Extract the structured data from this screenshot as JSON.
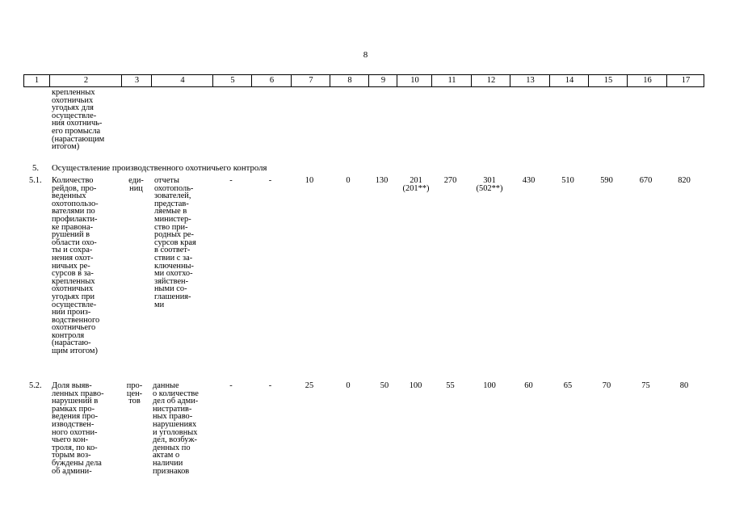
{
  "page_number": "8",
  "header": [
    "1",
    "2",
    "3",
    "4",
    "5",
    "6",
    "7",
    "8",
    "9",
    "10",
    "11",
    "12",
    "13",
    "14",
    "15",
    "16",
    "17"
  ],
  "cont_text": "крепленных\nохотничьих\nугодьях для\nосуществле-\nния охотничь-\nего промысла\n(нарастающим\nитогом)",
  "section": {
    "number": "5.",
    "title": "Осуществление производственного охотничьего контроля"
  },
  "rows": [
    {
      "num": "5.1.",
      "name": "Количество\nрейдов, про-\nведенных\nохотопользо-\nвателями по\nпрофилакти-\nке правона-\nрушений в\nобласти охо-\nты и сохра-\nнения охот-\nничьих ре-\nсурсов в за-\nкрепленных\nохотничьих\nугодьях при\nосуществле-\nнии произ-\nводственного\nохотничьего\nконтроля\n(нарастаю-\nщим итогом)",
      "unit": "еди-\nниц",
      "source": "отчеты\nохотополь-\nзователей,\nпредстав-\nляемые в\nминистер-\nство при-\nродных ре-\nсурсов края\nв соответ-\nствии с за-\nключенны-\nми охотхо-\nзяйствен-\nными со-\nглашения-\nми",
      "c5": "-",
      "c6": "-",
      "c7": "10",
      "c8": "0",
      "c9": "130",
      "c10": "201\n(201**)",
      "c11": "270",
      "c12": "301\n(502**)",
      "c13": "430",
      "c14": "510",
      "c15": "590",
      "c16": "670",
      "c17": "820"
    },
    {
      "num": "5.2.",
      "name": "Доля выяв-\nленных право-\nнарушений в\nрамках про-\nведения про-\nизводствен-\nного охотни-\nчьего кон-\nтроля, по ко-\nторым воз-\nбуждены дела\nоб админи-",
      "unit": "про-\nцен-\nтов",
      "source": "данные\nо количестве\nдел об адми-\nнистратив-\nных право-\nнарушениях\nи уголовных\nдел, возбуж-\nденных по\nактам о\nналичии\nпризнаков",
      "c5": "-",
      "c6": "-",
      "c7": "25",
      "c8": "0",
      "c9": "50",
      "c10": "100",
      "c11": "55",
      "c12": "100",
      "c13": "60",
      "c14": "65",
      "c15": "70",
      "c16": "75",
      "c17": "80"
    }
  ]
}
